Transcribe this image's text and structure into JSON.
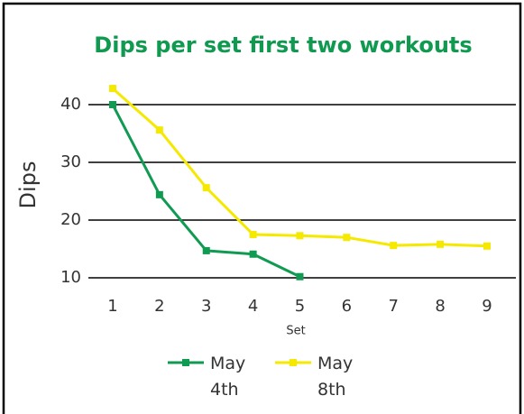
{
  "chart_data": {
    "type": "line",
    "title": "Dips per set first two workouts",
    "x_label": "Set",
    "y_label": "Dips",
    "x": [
      1,
      2,
      3,
      4,
      5,
      6,
      7,
      8,
      9
    ],
    "xlim": [
      1,
      9
    ],
    "xticks": [
      1,
      2,
      3,
      4,
      5,
      6,
      7,
      8,
      9
    ],
    "ylim": [
      8,
      44
    ],
    "yticks": [
      10,
      20,
      30,
      40
    ],
    "grid": true,
    "series": [
      {
        "name": "May 4th",
        "color": "#119a52",
        "values": [
          40,
          24.4,
          14.7,
          14.1,
          10.2,
          null,
          null,
          null,
          null
        ]
      },
      {
        "name": "May 8th",
        "color": "#f5e900",
        "values": [
          42.8,
          35.6,
          25.6,
          17.5,
          17.3,
          17,
          15.6,
          15.8,
          15.5
        ]
      }
    ]
  }
}
